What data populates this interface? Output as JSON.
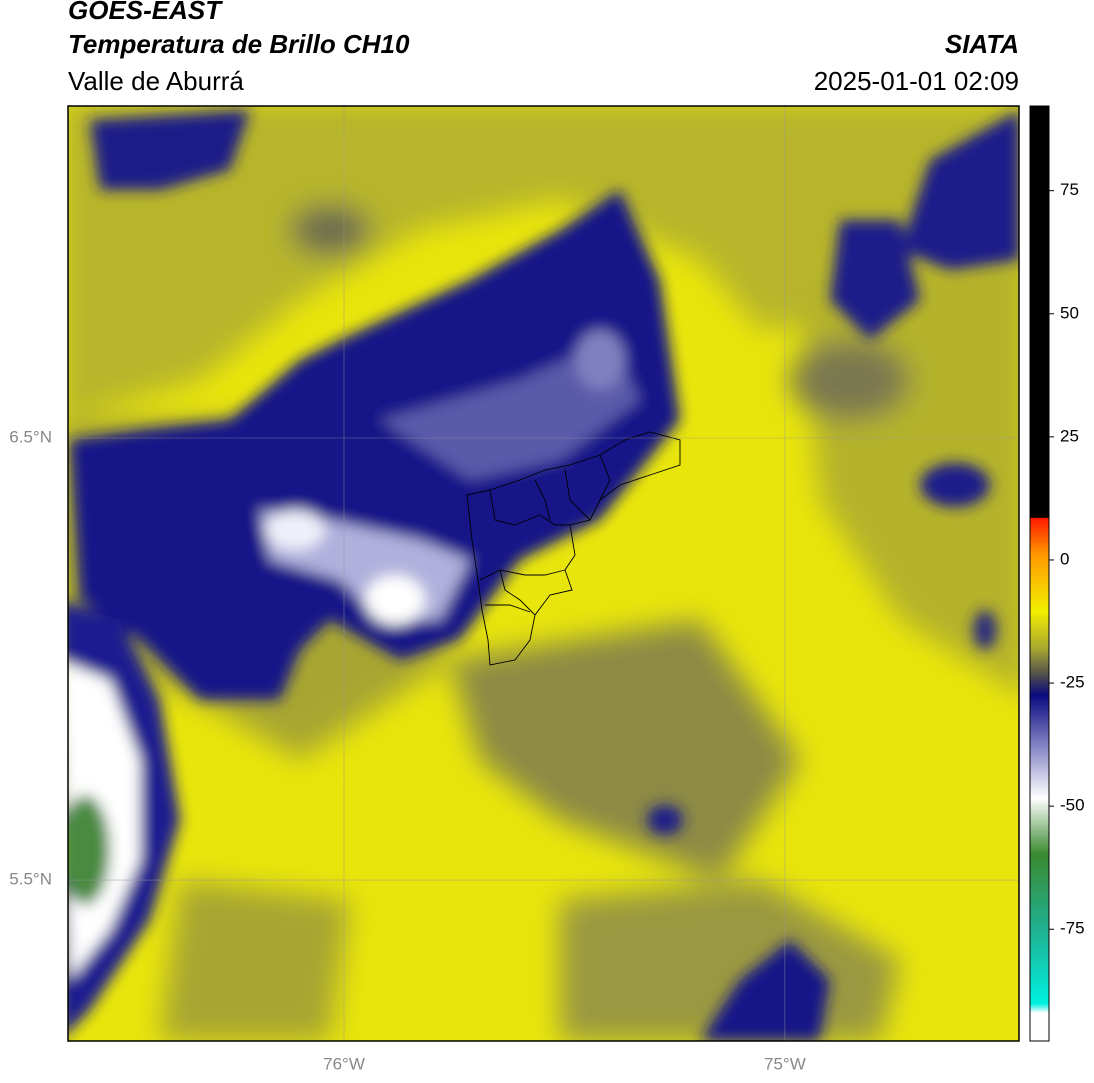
{
  "header": {
    "title": "GOES-EAST",
    "subtitle": "Temperatura de Brillo CH10",
    "region": "Valle de Aburrá",
    "source": "SIATA",
    "datetime": "2025-01-01 02:09"
  },
  "map": {
    "xlim": [
      -76.626,
      -74.469
    ],
    "ylim": [
      5.136,
      7.251
    ],
    "xticks": [
      {
        "value": -76,
        "label": "76°W"
      },
      {
        "value": -75,
        "label": "75°W"
      }
    ],
    "yticks": [
      {
        "value": 6.5,
        "label": "6.5°N"
      },
      {
        "value": 5.5,
        "label": "5.5°N"
      }
    ]
  },
  "colorbar": {
    "lim": [
      -97.7,
      92.2
    ],
    "ticks": [
      75,
      50,
      25,
      0,
      -25,
      -50,
      -75
    ]
  }
}
